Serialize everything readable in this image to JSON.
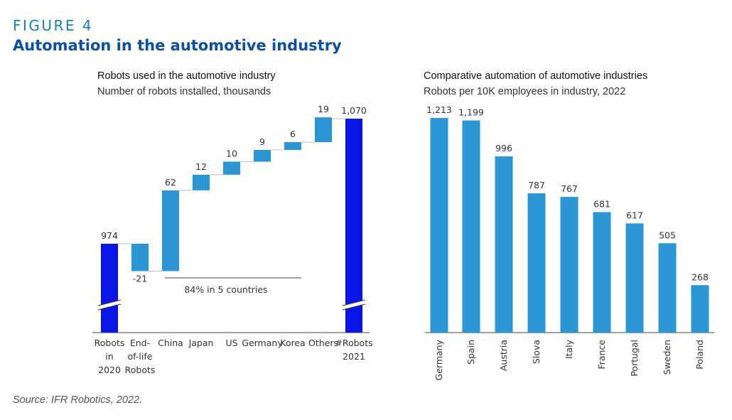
{
  "figure": {
    "label": "FIGURE 4",
    "title": "Automation in the automotive industry",
    "source": "Source: IFR Robotics, 2022."
  },
  "colors": {
    "total_bar": "#0a16e6",
    "step_bar": "#2a97d4",
    "bar_right": "#2a97d4",
    "label_blue": "#1a7fb8",
    "title_blue": "#0b4fa3"
  },
  "chart_data": [
    {
      "type": "bar",
      "subtype": "waterfall",
      "title": "Robots used in the automotive industry",
      "subtitle": "Number of robots installed, thousands",
      "categories": [
        [
          "Robots",
          "in",
          "2020"
        ],
        [
          "End-",
          "of-life",
          "Robots"
        ],
        [
          "China"
        ],
        [
          "Japan"
        ],
        [
          "US"
        ],
        [
          "Germany"
        ],
        [
          "Korea"
        ],
        [
          "Others"
        ],
        [
          "#Robots",
          "2021"
        ]
      ],
      "values": [
        974,
        -21,
        62,
        12,
        10,
        9,
        6,
        19,
        1070
      ],
      "value_labels": [
        "974",
        "-21",
        "62",
        "12",
        "10",
        "9",
        "6",
        "19",
        "1,070"
      ],
      "kinds": [
        "total",
        "step",
        "step",
        "step",
        "step",
        "step",
        "step",
        "step",
        "total"
      ],
      "axis_break": true,
      "annotation": "84% in 5 countries",
      "xlabel": "",
      "ylabel": ""
    },
    {
      "type": "bar",
      "title": "Comparative automation of automotive industries",
      "subtitle": "Robots per 10K employees in industry, 2022",
      "categories": [
        "Germany",
        "Spain",
        "Austria",
        "Slova",
        "Italy",
        "France",
        "Portugal",
        "Sweden",
        "Poland"
      ],
      "values": [
        1213,
        1199,
        996,
        787,
        767,
        681,
        617,
        505,
        268
      ],
      "value_labels": [
        "1,213",
        "1,199",
        "996",
        "787",
        "767",
        "681",
        "617",
        "505",
        "268"
      ],
      "ylim": [
        0,
        1213
      ],
      "xlabel": "",
      "ylabel": ""
    }
  ]
}
